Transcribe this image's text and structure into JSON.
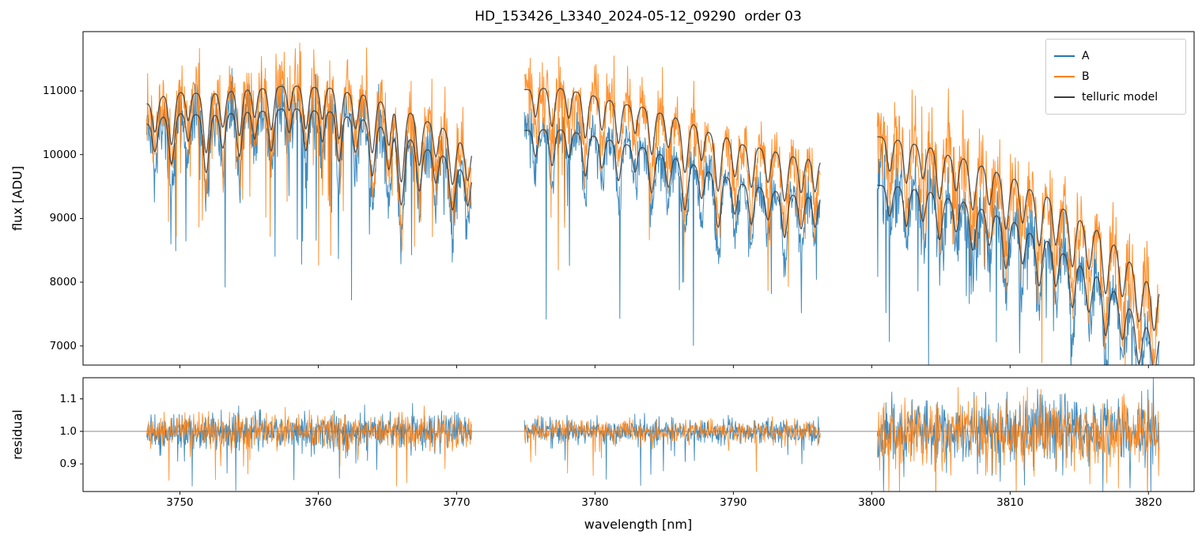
{
  "chart_data": {
    "type": "line",
    "title": "HD_153426_L3340_2024-05-12_09290  order 03",
    "xlabel": "wavelength [nm]",
    "grid": false,
    "xlim": [
      3743.0,
      3823.3
    ],
    "xticks": [
      3750,
      3760,
      3770,
      3780,
      3790,
      3800,
      3810,
      3820
    ],
    "xtick_labels": [
      "3750",
      "3760",
      "3770",
      "3780",
      "3790",
      "3800",
      "3810",
      "3820"
    ],
    "panels": [
      {
        "name": "flux",
        "ylabel": "flux [ADU]",
        "ylim": [
          6700,
          11930
        ],
        "yticks": [
          7000,
          8000,
          9000,
          10000,
          11000
        ],
        "ytick_labels": [
          "7000",
          "8000",
          "9000",
          "10000",
          "11000"
        ]
      },
      {
        "name": "residual",
        "ylabel": "residual",
        "ylim": [
          0.815,
          1.165
        ],
        "yticks": [
          0.9,
          1.0,
          1.1
        ],
        "ytick_labels": [
          "0.9",
          "1.0",
          "1.1"
        ],
        "hline": 1.0
      }
    ],
    "legend": {
      "position": "upper right",
      "entries": [
        {
          "label": "A",
          "color": "#1f77b4"
        },
        {
          "label": "B",
          "color": "#ff7f0e"
        },
        {
          "label": "telluric model",
          "color": "#3a3a3a"
        }
      ]
    },
    "series_colors": {
      "A": "#1f77b4",
      "B": "#ff7f0e",
      "model": "#3a3a3a"
    },
    "sample_step": 0.035,
    "noise_seed": 20240512,
    "data_line_boost": 1.5,
    "noise": {
      "sigma_A": 0.022,
      "sigma_B": 0.028,
      "spike_prob": 0.04,
      "spike_max": 0.2,
      "deep_spike_prob": 0.006,
      "deep_spike_max": 0.32,
      "res_spike_max": 0.15
    },
    "telluric_lines": [
      [
        3748.2,
        0.045,
        0.18
      ],
      [
        3749.4,
        0.075,
        0.2
      ],
      [
        3750.6,
        0.04,
        0.16
      ],
      [
        3751.9,
        0.085,
        0.2
      ],
      [
        3753.1,
        0.05,
        0.18
      ],
      [
        3754.3,
        0.065,
        0.18
      ],
      [
        3755.4,
        0.04,
        0.16
      ],
      [
        3756.6,
        0.06,
        0.18
      ],
      [
        3757.9,
        0.035,
        0.16
      ],
      [
        3759.1,
        0.06,
        0.18
      ],
      [
        3760.3,
        0.045,
        0.16
      ],
      [
        3761.5,
        0.07,
        0.18
      ],
      [
        3762.7,
        0.05,
        0.18
      ],
      [
        3763.9,
        0.08,
        0.2
      ],
      [
        3765.1,
        0.06,
        0.18
      ],
      [
        3766.0,
        0.11,
        0.22
      ],
      [
        3767.3,
        0.07,
        0.18
      ],
      [
        3768.5,
        0.05,
        0.18
      ],
      [
        3769.7,
        0.075,
        0.2
      ],
      [
        3770.8,
        0.055,
        0.18
      ],
      [
        3775.7,
        0.04,
        0.16
      ],
      [
        3776.9,
        0.055,
        0.18
      ],
      [
        3778.1,
        0.04,
        0.16
      ],
      [
        3779.3,
        0.065,
        0.18
      ],
      [
        3780.5,
        0.045,
        0.16
      ],
      [
        3781.7,
        0.06,
        0.18
      ],
      [
        3782.9,
        0.04,
        0.16
      ],
      [
        3784.1,
        0.065,
        0.18
      ],
      [
        3785.3,
        0.05,
        0.18
      ],
      [
        3786.5,
        0.075,
        0.2
      ],
      [
        3787.7,
        0.05,
        0.18
      ],
      [
        3788.9,
        0.085,
        0.2
      ],
      [
        3790.1,
        0.055,
        0.18
      ],
      [
        3791.3,
        0.065,
        0.18
      ],
      [
        3792.5,
        0.05,
        0.18
      ],
      [
        3793.7,
        0.075,
        0.2
      ],
      [
        3794.9,
        0.055,
        0.18
      ],
      [
        3795.9,
        0.05,
        0.16
      ],
      [
        3801.3,
        0.05,
        0.18
      ],
      [
        3802.5,
        0.065,
        0.18
      ],
      [
        3803.7,
        0.05,
        0.18
      ],
      [
        3804.9,
        0.075,
        0.2
      ],
      [
        3806.1,
        0.055,
        0.18
      ],
      [
        3807.3,
        0.075,
        0.2
      ],
      [
        3808.5,
        0.06,
        0.18
      ],
      [
        3809.7,
        0.085,
        0.2
      ],
      [
        3810.9,
        0.065,
        0.18
      ],
      [
        3812.1,
        0.09,
        0.2
      ],
      [
        3813.3,
        0.07,
        0.18
      ],
      [
        3814.5,
        0.095,
        0.2
      ],
      [
        3815.7,
        0.075,
        0.2
      ],
      [
        3816.9,
        0.1,
        0.2
      ],
      [
        3818.1,
        0.085,
        0.2
      ],
      [
        3819.3,
        0.105,
        0.22
      ],
      [
        3820.4,
        0.095,
        0.2
      ]
    ],
    "segments": [
      {
        "x_range": [
          3747.6,
          3771.1
        ],
        "noise_scale": 1.0,
        "res_sigma_A": 0.028,
        "res_sigma_B": 0.026,
        "model_B": [
          [
            3747.6,
            10800
          ],
          [
            3749.5,
            10980
          ],
          [
            3752,
            10960
          ],
          [
            3755,
            11020
          ],
          [
            3758,
            11080
          ],
          [
            3760.5,
            11050
          ],
          [
            3763,
            10950
          ],
          [
            3765.5,
            10780
          ],
          [
            3768,
            10520
          ],
          [
            3771.1,
            10140
          ]
        ],
        "model_A": [
          [
            3747.6,
            10480
          ],
          [
            3749.5,
            10650
          ],
          [
            3752,
            10620
          ],
          [
            3755,
            10670
          ],
          [
            3758,
            10720
          ],
          [
            3760.5,
            10680
          ],
          [
            3763,
            10560
          ],
          [
            3765.5,
            10380
          ],
          [
            3768,
            10080
          ],
          [
            3771.1,
            9720
          ]
        ]
      },
      {
        "x_range": [
          3774.9,
          3796.3
        ],
        "noise_scale": 0.85,
        "res_sigma_A": 0.018,
        "res_sigma_B": 0.017,
        "model_B": [
          [
            3774.9,
            11020
          ],
          [
            3777,
            11050
          ],
          [
            3779,
            10980
          ],
          [
            3781,
            10850
          ],
          [
            3783,
            10760
          ],
          [
            3785,
            10650
          ],
          [
            3787,
            10480
          ],
          [
            3789,
            10300
          ],
          [
            3791,
            10150
          ],
          [
            3793,
            10050
          ],
          [
            3795,
            9950
          ],
          [
            3796.3,
            9900
          ]
        ],
        "model_A": [
          [
            3774.9,
            10380
          ],
          [
            3777,
            10400
          ],
          [
            3779,
            10340
          ],
          [
            3781,
            10230
          ],
          [
            3783,
            10130
          ],
          [
            3785,
            10000
          ],
          [
            3787,
            9850
          ],
          [
            3789,
            9680
          ],
          [
            3791,
            9530
          ],
          [
            3793,
            9430
          ],
          [
            3795,
            9350
          ],
          [
            3796.3,
            9320
          ]
        ]
      },
      {
        "x_range": [
          3800.4,
          3820.8
        ],
        "noise_scale": 1.35,
        "res_sigma_A": 0.05,
        "res_sigma_B": 0.048,
        "model_B": [
          [
            3800.4,
            10280
          ],
          [
            3802,
            10230
          ],
          [
            3804,
            10120
          ],
          [
            3806,
            9980
          ],
          [
            3808,
            9830
          ],
          [
            3810,
            9640
          ],
          [
            3812,
            9420
          ],
          [
            3814,
            9150
          ],
          [
            3816,
            8850
          ],
          [
            3817.5,
            8600
          ],
          [
            3819,
            8300
          ],
          [
            3820,
            8050
          ],
          [
            3820.8,
            7950
          ]
        ],
        "model_A": [
          [
            3800.4,
            9520
          ],
          [
            3802,
            9500
          ],
          [
            3804,
            9420
          ],
          [
            3806,
            9300
          ],
          [
            3808,
            9150
          ],
          [
            3810,
            8960
          ],
          [
            3812,
            8730
          ],
          [
            3814,
            8450
          ],
          [
            3816,
            8120
          ],
          [
            3817.5,
            7870
          ],
          [
            3819,
            7560
          ],
          [
            3820,
            7320
          ],
          [
            3820.8,
            7200
          ]
        ]
      }
    ]
  }
}
